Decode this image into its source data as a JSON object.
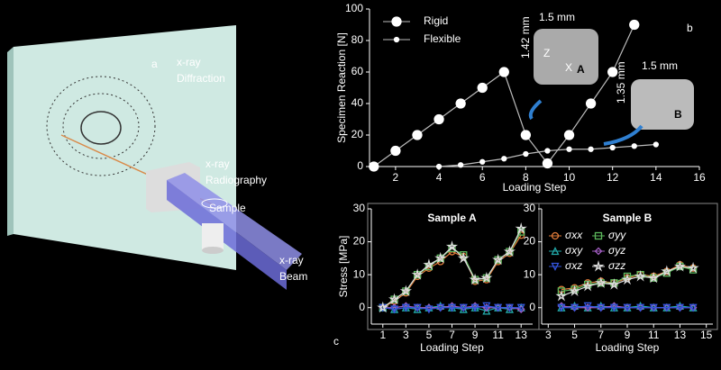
{
  "diagram": {
    "panel_label": "a",
    "labels": [
      {
        "lines": [
          "x-ray",
          "Diffraction"
        ]
      },
      {
        "lines": [
          "x-ray",
          "Radiography"
        ]
      },
      {
        "lines": [
          "Sample"
        ]
      },
      {
        "lines": [
          "x-ray",
          "Beam"
        ]
      }
    ]
  },
  "chart_data": [
    {
      "type": "line",
      "panel_label": "b",
      "x_label": "Loading Step",
      "y_label": "Specimen Reaction [N]",
      "xlim": [
        0.8,
        16
      ],
      "xticks": [
        2,
        4,
        6,
        8,
        10,
        12,
        14,
        16
      ],
      "ylim": [
        0,
        100
      ],
      "yticks": [
        0,
        20,
        40,
        60,
        80,
        100
      ],
      "legend": "upper left",
      "annotations": [
        "1.5 mm",
        "1.42 mm",
        "A",
        "Z",
        "X",
        "1.5 mm",
        "1.35 mm",
        "B"
      ],
      "series": [
        {
          "name": "Rigid",
          "color": "#bbbbbb",
          "marker": "big-circle",
          "x": [
            1,
            2,
            3,
            4,
            5,
            6,
            7,
            8,
            9,
            10,
            11,
            12,
            13
          ],
          "values": [
            0,
            10,
            20,
            30,
            40,
            50,
            60,
            20,
            2,
            20,
            40,
            60,
            90
          ]
        },
        {
          "name": "Flexible",
          "color": "#bbbbbb",
          "marker": "dot",
          "x": [
            4,
            5,
            6,
            7,
            8,
            9,
            10,
            11,
            12,
            13,
            14
          ],
          "values": [
            0,
            1,
            3,
            5,
            8,
            10,
            11,
            11,
            12,
            13,
            14
          ]
        }
      ]
    },
    {
      "type": "line",
      "panel_label": "c",
      "title": "Sample A",
      "x_label": "Loading Step",
      "y_label": "Stress [MPa]",
      "xlim": [
        0,
        14
      ],
      "xticks": [
        1,
        3,
        5,
        7,
        9,
        11,
        13
      ],
      "ylim": [
        -5,
        30
      ],
      "yticks": [
        0,
        10,
        20,
        30
      ],
      "series": [
        {
          "name": "σxx",
          "color": "#e07b39",
          "marker": "circle",
          "x": [
            1,
            2,
            3,
            4,
            5,
            6,
            7,
            8,
            9,
            10,
            11,
            12,
            13
          ],
          "values": [
            0,
            2,
            4.5,
            9.5,
            12,
            14,
            17,
            15.5,
            8,
            8.5,
            14,
            16.5,
            22
          ]
        },
        {
          "name": "σyy",
          "color": "#5cb85c",
          "marker": "square",
          "x": [
            1,
            2,
            3,
            4,
            5,
            6,
            7,
            8,
            9,
            10,
            11,
            12,
            13
          ],
          "values": [
            0,
            2.5,
            5,
            10,
            12.5,
            15,
            18,
            16,
            8.5,
            9,
            14.5,
            17,
            23
          ]
        },
        {
          "name": "σxy",
          "color": "#22aaaa",
          "marker": "triangle",
          "x": [
            1,
            2,
            3,
            4,
            5,
            6,
            7,
            8,
            9,
            10,
            11,
            12,
            13
          ],
          "values": [
            0,
            -0.5,
            0,
            -0.5,
            0,
            0.5,
            0,
            -0.5,
            0,
            -1,
            0,
            -0.5,
            0
          ]
        },
        {
          "name": "σyz",
          "color": "#a05cc0",
          "marker": "diamond",
          "x": [
            1,
            2,
            3,
            4,
            5,
            6,
            7,
            8,
            9,
            10,
            11,
            12,
            13
          ],
          "values": [
            0,
            0,
            0.5,
            0,
            0,
            0,
            0.5,
            0,
            0.5,
            0,
            0,
            0,
            -0.5
          ]
        },
        {
          "name": "σxz",
          "color": "#3355dd",
          "marker": "triangle-down",
          "x": [
            1,
            2,
            3,
            4,
            5,
            6,
            7,
            8,
            9,
            10,
            11,
            12,
            13
          ],
          "values": [
            0,
            -0.5,
            0,
            0,
            -0.5,
            0,
            0,
            0,
            0,
            0.5,
            0,
            0,
            0
          ]
        },
        {
          "name": "σzz",
          "color": "#dddddd",
          "marker": "star",
          "x": [
            1,
            2,
            3,
            4,
            5,
            6,
            7,
            8,
            9,
            10,
            11,
            12,
            13
          ],
          "values": [
            0,
            2.5,
            5,
            10,
            13,
            15,
            18.5,
            15,
            8.5,
            9,
            14.5,
            17,
            24
          ]
        }
      ]
    },
    {
      "type": "line",
      "title": "Sample B",
      "x_label": "Loading Step",
      "xlim": [
        2.5,
        15.5
      ],
      "xticks": [
        3,
        5,
        7,
        9,
        11,
        13,
        15
      ],
      "ylim": [
        -5,
        30
      ],
      "yticks": [
        0,
        10,
        20,
        30
      ],
      "legend": "upper left",
      "series": [
        {
          "name": "σxx",
          "color": "#e07b39",
          "marker": "circle",
          "x": [
            4,
            5,
            6,
            7,
            8,
            9,
            10,
            11,
            12,
            13,
            14
          ],
          "values": [
            5.5,
            6,
            7.5,
            8,
            7.5,
            9,
            10,
            9.5,
            11,
            13,
            12
          ]
        },
        {
          "name": "σyy",
          "color": "#5cb85c",
          "marker": "square",
          "x": [
            4,
            5,
            6,
            7,
            8,
            9,
            10,
            11,
            12,
            13,
            14
          ],
          "values": [
            5,
            5.5,
            7,
            7.5,
            7.5,
            9.5,
            10,
            9,
            10.5,
            12.5,
            11.5
          ]
        },
        {
          "name": "σxy",
          "color": "#22aaaa",
          "marker": "triangle",
          "x": [
            4,
            5,
            6,
            7,
            8,
            9,
            10,
            11,
            12,
            13,
            14
          ],
          "values": [
            0,
            0.5,
            0,
            0.5,
            0,
            0,
            0.5,
            0,
            0,
            0.5,
            0
          ]
        },
        {
          "name": "σyz",
          "color": "#a05cc0",
          "marker": "diamond",
          "x": [
            4,
            5,
            6,
            7,
            8,
            9,
            10,
            11,
            12,
            13,
            14
          ],
          "values": [
            0.5,
            0,
            0,
            0,
            0.5,
            0,
            0,
            0,
            0,
            0,
            0
          ]
        },
        {
          "name": "σxz",
          "color": "#3355dd",
          "marker": "triangle-down",
          "x": [
            4,
            5,
            6,
            7,
            8,
            9,
            10,
            11,
            12,
            13,
            14
          ],
          "values": [
            0,
            0,
            0.5,
            0,
            0,
            0,
            0,
            0,
            0,
            0,
            0
          ]
        },
        {
          "name": "σzz",
          "color": "#dddddd",
          "marker": "star",
          "x": [
            4,
            5,
            6,
            7,
            8,
            9,
            10,
            11,
            12,
            13,
            14
          ],
          "values": [
            3.5,
            5,
            6.5,
            7.5,
            7,
            8.5,
            9.5,
            9,
            11,
            12.5,
            12
          ]
        }
      ]
    }
  ]
}
